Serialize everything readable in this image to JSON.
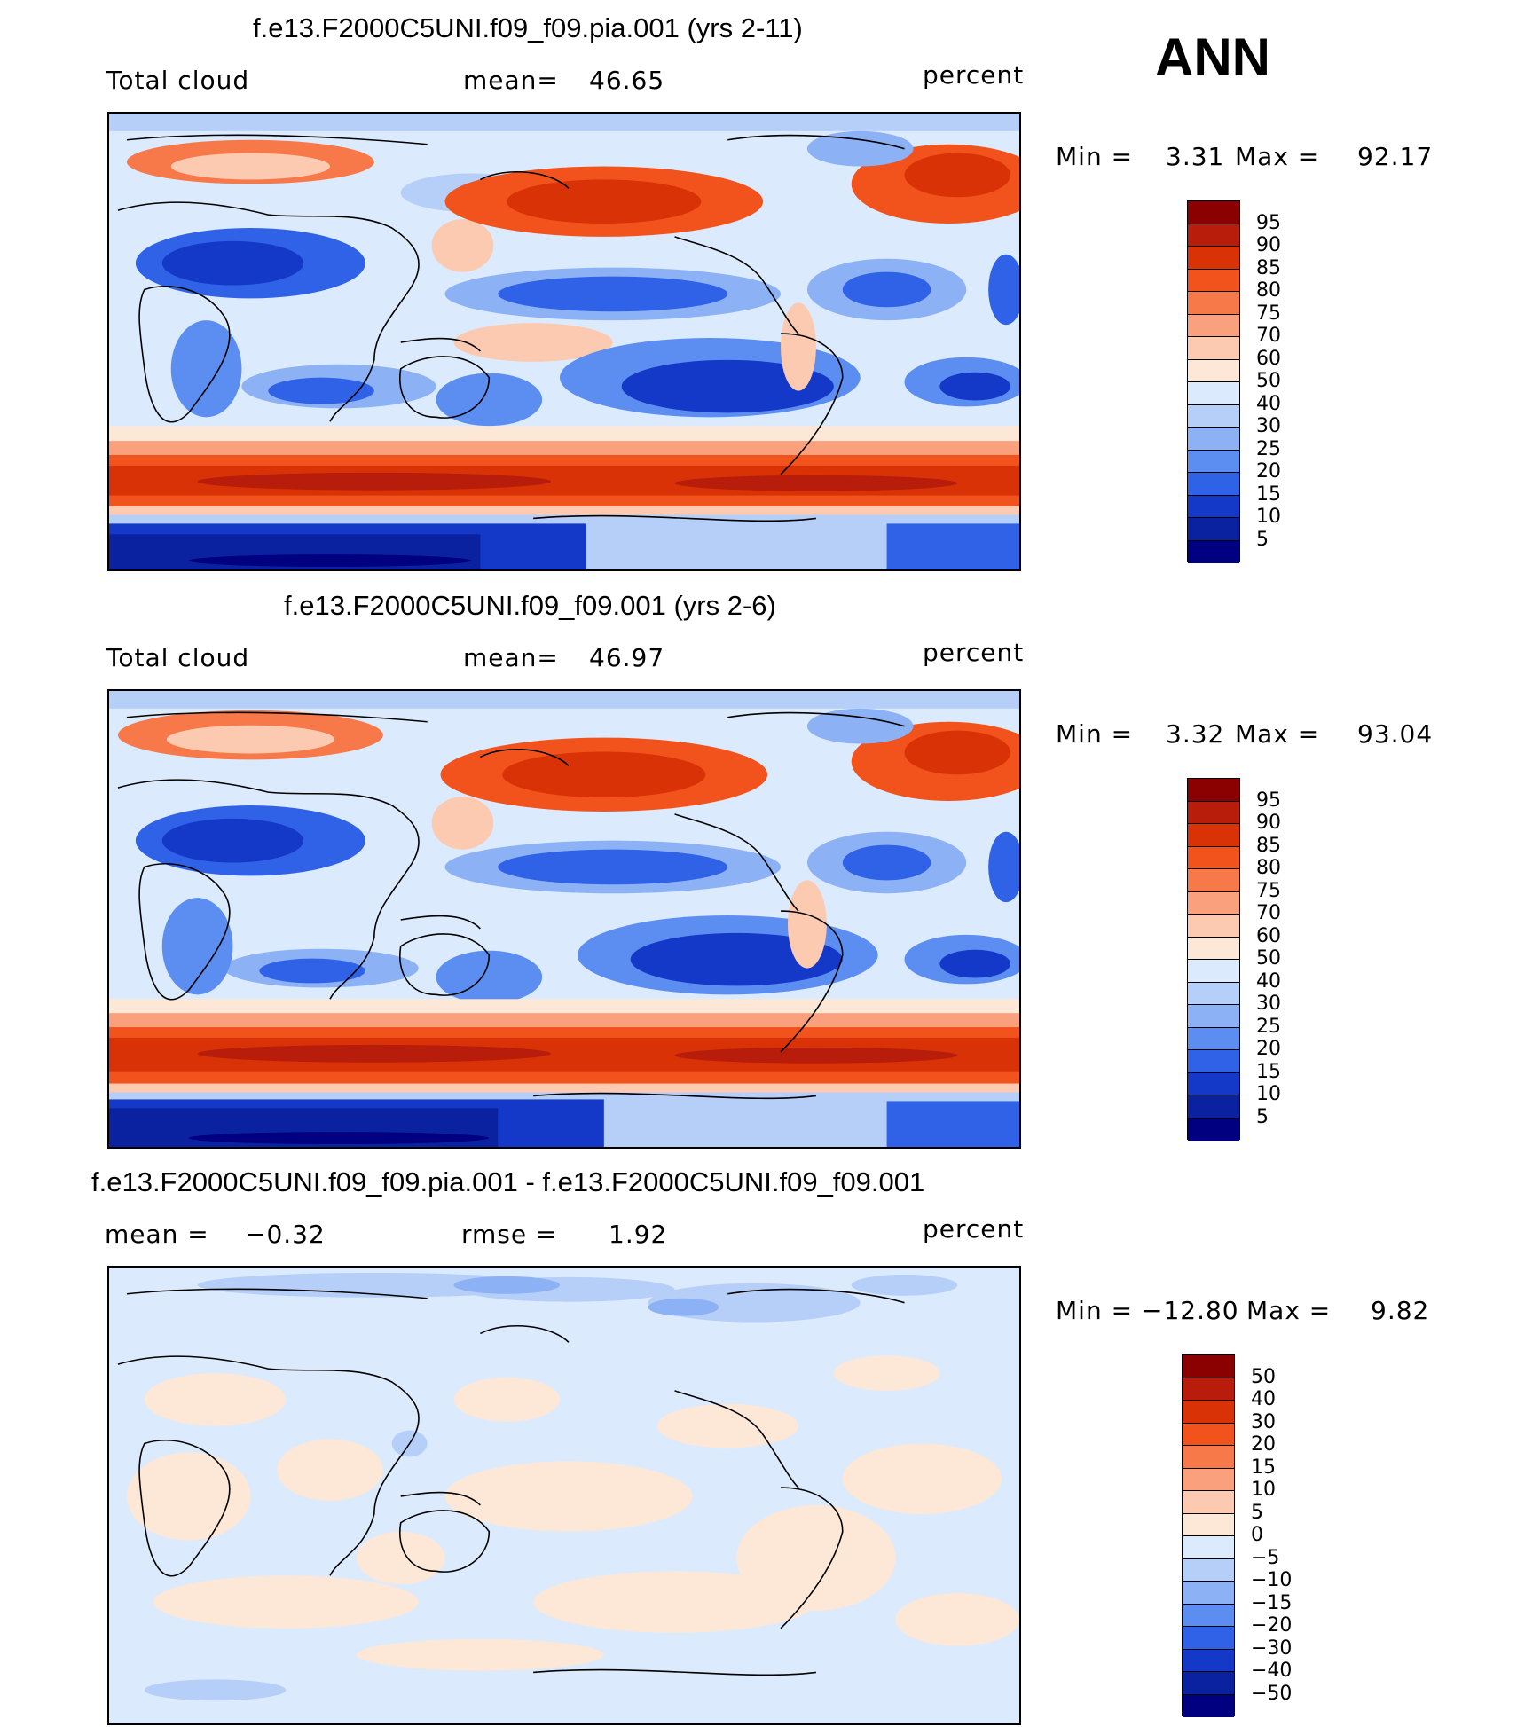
{
  "season": "ANN",
  "chart_data": [
    {
      "type": "heatmap",
      "title": "f.e13.F2000C5UNI.f09_f09.pia.001 (yrs 2-11)",
      "left_label": "Total cloud",
      "mean_label": "mean=",
      "mean_value": "46.65",
      "units": "percent",
      "min_label": "Min =",
      "min_value": "3.31",
      "max_label": "Max =",
      "max_value": "92.17",
      "levels": [
        "95",
        "90",
        "85",
        "80",
        "75",
        "70",
        "60",
        "50",
        "40",
        "30",
        "25",
        "20",
        "15",
        "10",
        "5"
      ],
      "colors": [
        "#8b0000",
        "#b81c0a",
        "#d93206",
        "#f2531d",
        "#f7794a",
        "#faa07d",
        "#fccab0",
        "#fde8d8",
        "#dbeafc",
        "#b6cff8",
        "#8cb2f5",
        "#5c8df0",
        "#2f62e6",
        "#1438c8",
        "#0a22a0",
        "#000080"
      ]
    },
    {
      "type": "heatmap",
      "title": "f.e13.F2000C5UNI.f09_f09.001 (yrs 2-6)",
      "left_label": "Total cloud",
      "mean_label": "mean=",
      "mean_value": "46.97",
      "units": "percent",
      "min_label": "Min =",
      "min_value": "3.32",
      "max_label": "Max =",
      "max_value": "93.04",
      "levels": [
        "95",
        "90",
        "85",
        "80",
        "75",
        "70",
        "60",
        "50",
        "40",
        "30",
        "25",
        "20",
        "15",
        "10",
        "5"
      ],
      "colors": [
        "#8b0000",
        "#b81c0a",
        "#d93206",
        "#f2531d",
        "#f7794a",
        "#faa07d",
        "#fccab0",
        "#fde8d8",
        "#dbeafc",
        "#b6cff8",
        "#8cb2f5",
        "#5c8df0",
        "#2f62e6",
        "#1438c8",
        "#0a22a0",
        "#000080"
      ]
    },
    {
      "type": "heatmap",
      "title": "f.e13.F2000C5UNI.f09_f09.pia.001 - f.e13.F2000C5UNI.f09_f09.001",
      "left_label": "mean =",
      "left_value": "−0.32",
      "mean_label": "rmse =",
      "mean_value": "1.92",
      "units": "percent",
      "min_label": "Min =",
      "min_value": "−12.80",
      "max_label": "Max =",
      "max_value": "9.82",
      "levels": [
        "50",
        "40",
        "30",
        "20",
        "15",
        "10",
        "5",
        "0",
        "−5",
        "−10",
        "−15",
        "−20",
        "−30",
        "−40",
        "−50"
      ],
      "colors": [
        "#8b0000",
        "#b81c0a",
        "#d93206",
        "#f2531d",
        "#f7794a",
        "#faa07d",
        "#fccab0",
        "#fde8d8",
        "#dbeafc",
        "#b6cff8",
        "#8cb2f5",
        "#5c8df0",
        "#2f62e6",
        "#1438c8",
        "#0a22a0",
        "#000080"
      ]
    }
  ]
}
